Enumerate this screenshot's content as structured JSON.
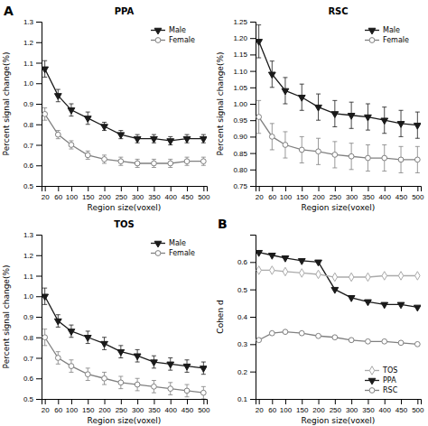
{
  "chart_data": [
    {
      "type": "line",
      "title": "PPA",
      "annotations": [
        "A"
      ],
      "x_label": "Region size(voxel)",
      "y_label": "Percent signal change(%)",
      "x": [
        20,
        60,
        100,
        150,
        200,
        250,
        300,
        350,
        400,
        450,
        500
      ],
      "xlim": [
        10,
        510
      ],
      "xticks": [
        20,
        60,
        100,
        150,
        200,
        250,
        300,
        350,
        400,
        450,
        500
      ],
      "ylim": [
        0.5,
        1.3
      ],
      "yticks": [
        0.5,
        0.6,
        0.7,
        0.8,
        0.9,
        {
          "value": 1.0,
          "label": "1.0"
        },
        1.1,
        1.2,
        1.3
      ],
      "grid": false,
      "legend": "upper right",
      "series": [
        {
          "name": "Male",
          "color": "#1a1a1a",
          "marker": "triangle-down",
          "line_style": "solid",
          "values": [
            1.07,
            0.94,
            0.87,
            0.83,
            0.79,
            0.75,
            0.73,
            0.73,
            0.72,
            0.73,
            0.73
          ],
          "error": [
            0.04,
            0.03,
            0.03,
            0.03,
            0.02,
            0.02,
            0.02,
            0.02,
            0.02,
            0.02,
            0.02
          ]
        },
        {
          "name": "Female",
          "color": "#808080",
          "marker": "circle-open",
          "line_style": "solid",
          "values": [
            0.85,
            0.75,
            0.7,
            0.65,
            0.63,
            0.62,
            0.61,
            0.61,
            0.61,
            0.62,
            0.62
          ],
          "error": [
            0.03,
            0.02,
            0.02,
            0.02,
            0.02,
            0.02,
            0.02,
            0.02,
            0.02,
            0.02,
            0.02
          ]
        }
      ]
    },
    {
      "type": "line",
      "title": "RSC",
      "x_label": "Region size(voxel)",
      "y_label": "Percent signal change(%)",
      "x": [
        20,
        60,
        100,
        150,
        200,
        250,
        300,
        350,
        400,
        450,
        500
      ],
      "xlim": [
        10,
        510
      ],
      "xticks": [
        20,
        60,
        100,
        150,
        200,
        250,
        300,
        350,
        400,
        450,
        500
      ],
      "ylim": [
        0.75,
        1.25
      ],
      "yticks": [
        0.75,
        {
          "value": 0.8,
          "label": "0.80"
        },
        0.85,
        {
          "value": 0.9,
          "label": "0.90"
        },
        0.95,
        {
          "value": 1.0,
          "label": "1.00"
        },
        1.05,
        {
          "value": 1.1,
          "label": "1.10"
        },
        1.15,
        {
          "value": 1.2,
          "label": "1.20"
        },
        1.25
      ],
      "grid": false,
      "legend": "upper right",
      "series": [
        {
          "name": "Male",
          "color": "#1a1a1a",
          "marker": "triangle-down",
          "line_style": "solid",
          "values": [
            1.19,
            1.09,
            1.04,
            1.02,
            0.99,
            0.97,
            0.965,
            0.96,
            0.95,
            0.94,
            0.935
          ],
          "error": [
            0.05,
            0.04,
            0.04,
            0.04,
            0.04,
            0.04,
            0.04,
            0.04,
            0.04,
            0.04,
            0.04
          ]
        },
        {
          "name": "Female",
          "color": "#808080",
          "marker": "circle-open",
          "line_style": "solid",
          "values": [
            0.96,
            0.9,
            0.875,
            0.86,
            0.855,
            0.845,
            0.84,
            0.835,
            0.835,
            0.83,
            0.83
          ],
          "error": [
            0.05,
            0.04,
            0.04,
            0.04,
            0.04,
            0.04,
            0.04,
            0.04,
            0.04,
            0.04,
            0.04
          ]
        }
      ]
    },
    {
      "type": "line",
      "title": "TOS",
      "x_label": "Region size(voxel)",
      "y_label": "Percent signal change(%)",
      "x": [
        20,
        60,
        100,
        150,
        200,
        250,
        300,
        350,
        400,
        450,
        500
      ],
      "xlim": [
        10,
        510
      ],
      "xticks": [
        20,
        60,
        100,
        150,
        200,
        250,
        300,
        350,
        400,
        450,
        500
      ],
      "ylim": [
        0.5,
        1.3
      ],
      "yticks": [
        0.5,
        0.6,
        0.7,
        0.8,
        0.9,
        {
          "value": 1.0,
          "label": "1.0"
        },
        1.1,
        1.2,
        1.3
      ],
      "grid": false,
      "legend": "upper right",
      "series": [
        {
          "name": "Male",
          "color": "#1a1a1a",
          "marker": "triangle-down",
          "line_style": "solid",
          "values": [
            1.0,
            0.88,
            0.83,
            0.8,
            0.77,
            0.73,
            0.71,
            0.68,
            0.67,
            0.66,
            0.65
          ],
          "error": [
            0.04,
            0.03,
            0.03,
            0.03,
            0.03,
            0.03,
            0.03,
            0.03,
            0.03,
            0.03,
            0.03
          ]
        },
        {
          "name": "Female",
          "color": "#808080",
          "marker": "circle-open",
          "line_style": "solid",
          "values": [
            0.8,
            0.7,
            0.66,
            0.62,
            0.6,
            0.58,
            0.57,
            0.56,
            0.55,
            0.54,
            0.53
          ],
          "error": [
            0.04,
            0.03,
            0.03,
            0.03,
            0.03,
            0.03,
            0.03,
            0.03,
            0.03,
            0.03,
            0.03
          ]
        }
      ]
    },
    {
      "type": "line",
      "annotations": [
        "B"
      ],
      "x_label": "Region size(voxel)",
      "y_label": "Cohen d",
      "x": [
        20,
        60,
        100,
        150,
        200,
        250,
        300,
        350,
        400,
        450,
        500
      ],
      "xlim": [
        10,
        510
      ],
      "xticks": [
        20,
        60,
        100,
        150,
        200,
        250,
        300,
        350,
        400,
        450,
        500
      ],
      "ylim": [
        0.1,
        0.7
      ],
      "yticks": [
        0.1,
        0.2,
        0.3,
        0.4,
        0.5,
        0.6
      ],
      "grid": false,
      "legend": "lower right",
      "series": [
        {
          "name": "TOS",
          "color": "#aaaaaa",
          "marker": "diamond-open",
          "line_style": "solid",
          "values": [
            0.57,
            0.57,
            0.565,
            0.56,
            0.555,
            0.545,
            0.545,
            0.545,
            0.55,
            0.55,
            0.55
          ]
        },
        {
          "name": "PPA",
          "color": "#1a1a1a",
          "marker": "triangle-down",
          "line_style": "solid",
          "values": [
            0.635,
            0.625,
            0.615,
            0.605,
            0.6,
            0.5,
            0.47,
            0.455,
            0.445,
            0.445,
            0.435
          ]
        },
        {
          "name": "RSC",
          "color": "#808080",
          "marker": "circle-open",
          "line_style": "solid",
          "values": [
            0.315,
            0.34,
            0.345,
            0.34,
            0.33,
            0.325,
            0.315,
            0.31,
            0.31,
            0.305,
            0.3
          ]
        }
      ]
    }
  ]
}
